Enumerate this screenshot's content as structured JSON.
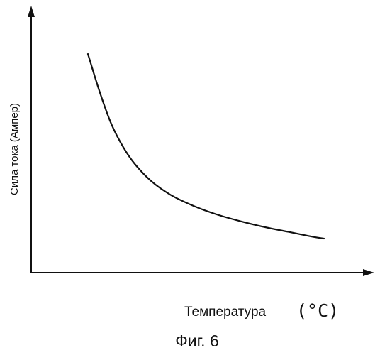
{
  "chart_data": {
    "type": "line",
    "title": "",
    "xlabel": "Температура",
    "x_unit": "(°C)",
    "ylabel": "Сила тока (Ампер)",
    "x_ticks": [],
    "y_ticks": [],
    "grid": false,
    "legend": "none",
    "line_color": "#111111",
    "series": [
      {
        "x": [
          0.0,
          0.05,
          0.1,
          0.15,
          0.2,
          0.27,
          0.35,
          0.45,
          0.55,
          0.65,
          0.75,
          0.85,
          0.95,
          1.0
        ],
        "y": [
          1.0,
          0.8,
          0.63,
          0.51,
          0.42,
          0.33,
          0.26,
          0.2,
          0.155,
          0.12,
          0.09,
          0.065,
          0.04,
          0.03
        ]
      }
    ]
  },
  "caption": "Фиг. 6"
}
